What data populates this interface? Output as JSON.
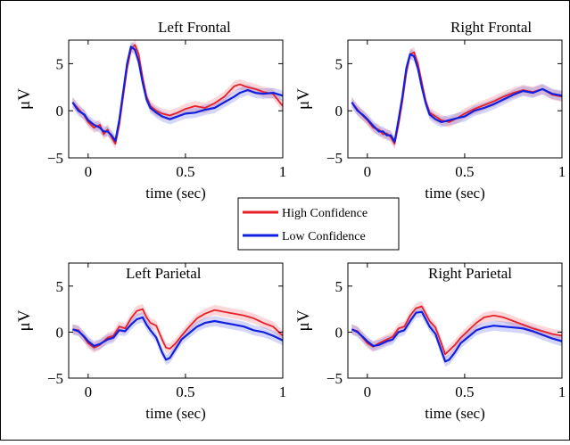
{
  "chart_data": [
    {
      "type": "line",
      "title": "Left Frontal",
      "xlabel": "time (sec)",
      "ylabel": "μV",
      "xlim": [
        -0.1,
        1.0
      ],
      "ylim": [
        -5,
        7.5
      ],
      "xticks": [
        0,
        0.5,
        1
      ],
      "xtick_labels": [
        "0",
        "0.5",
        "1"
      ],
      "yticks": [
        -5,
        0,
        5
      ],
      "ytick_labels": [
        "−5",
        "0",
        "5"
      ],
      "x": [
        -0.08,
        -0.05,
        -0.02,
        0.0,
        0.03,
        0.06,
        0.08,
        0.1,
        0.12,
        0.14,
        0.16,
        0.18,
        0.2,
        0.22,
        0.24,
        0.26,
        0.28,
        0.3,
        0.32,
        0.35,
        0.38,
        0.42,
        0.46,
        0.5,
        0.55,
        0.6,
        0.65,
        0.7,
        0.75,
        0.78,
        0.82,
        0.86,
        0.9,
        0.95,
        1.0
      ],
      "series": [
        {
          "name": "High Confidence",
          "color": "#e8202a",
          "values": [
            0.9,
            0.2,
            -0.5,
            -1.2,
            -1.8,
            -1.5,
            -2.5,
            -2.0,
            -2.8,
            -3.5,
            -1.5,
            1.5,
            4.5,
            6.5,
            7.0,
            6.0,
            3.5,
            1.5,
            0.5,
            0.0,
            -0.3,
            -0.5,
            -0.2,
            0.2,
            0.5,
            0.3,
            0.8,
            1.5,
            2.6,
            2.8,
            2.5,
            2.3,
            2.0,
            1.8,
            0.5
          ]
        },
        {
          "name": "Low Confidence",
          "color": "#1020e0",
          "values": [
            0.9,
            0.0,
            -0.4,
            -1.0,
            -1.5,
            -1.8,
            -2.2,
            -2.2,
            -2.6,
            -3.2,
            -1.0,
            2.0,
            5.0,
            6.8,
            6.5,
            5.2,
            3.0,
            1.2,
            0.3,
            -0.2,
            -0.6,
            -0.9,
            -0.6,
            -0.3,
            -0.2,
            0.1,
            0.3,
            0.9,
            1.5,
            1.9,
            2.2,
            1.9,
            1.8,
            1.9,
            1.6
          ]
        }
      ]
    },
    {
      "type": "line",
      "title": "Right Frontal",
      "xlabel": "time (sec)",
      "ylabel": "μV",
      "xlim": [
        -0.1,
        1.0
      ],
      "ylim": [
        -5,
        7.5
      ],
      "xticks": [
        0,
        0.5,
        1
      ],
      "xtick_labels": [
        "0",
        "0.5",
        "1"
      ],
      "yticks": [
        -5,
        0,
        5
      ],
      "ytick_labels": [
        "−5",
        "0",
        "5"
      ],
      "x": [
        -0.08,
        -0.05,
        -0.02,
        0.0,
        0.03,
        0.06,
        0.08,
        0.1,
        0.12,
        0.14,
        0.16,
        0.18,
        0.2,
        0.22,
        0.24,
        0.26,
        0.28,
        0.3,
        0.32,
        0.35,
        0.38,
        0.42,
        0.46,
        0.5,
        0.55,
        0.6,
        0.65,
        0.7,
        0.75,
        0.8,
        0.85,
        0.9,
        0.95,
        1.0
      ],
      "series": [
        {
          "name": "High Confidence",
          "color": "#e8202a",
          "values": [
            0.9,
            0.1,
            -0.6,
            -1.0,
            -1.8,
            -2.0,
            -2.5,
            -2.4,
            -2.8,
            -3.5,
            -1.5,
            1.0,
            4.0,
            6.0,
            6.2,
            5.0,
            3.0,
            1.0,
            -0.2,
            -0.6,
            -1.0,
            -1.2,
            -0.8,
            -0.3,
            0.2,
            0.6,
            1.0,
            1.5,
            1.9,
            2.2,
            2.0,
            2.3,
            1.7,
            1.5
          ]
        },
        {
          "name": "Low Confidence",
          "color": "#1020e0",
          "values": [
            0.9,
            0.0,
            -0.5,
            -0.9,
            -1.6,
            -2.2,
            -2.2,
            -2.6,
            -2.6,
            -3.3,
            -1.0,
            1.5,
            4.5,
            6.0,
            5.8,
            4.5,
            2.5,
            0.8,
            -0.4,
            -0.9,
            -1.2,
            -1.0,
            -0.8,
            -0.6,
            0.0,
            0.3,
            0.7,
            1.2,
            1.7,
            2.1,
            1.9,
            2.3,
            1.8,
            1.6
          ]
        }
      ]
    },
    {
      "type": "line",
      "title": "Left Parietal",
      "xlabel": "time (sec)",
      "ylabel": "μV",
      "xlim": [
        -0.1,
        1.0
      ],
      "ylim": [
        -5,
        7.5
      ],
      "xticks": [
        0,
        0.5,
        1
      ],
      "xtick_labels": [
        "0",
        "0.5",
        "1"
      ],
      "yticks": [
        -5,
        0,
        5
      ],
      "ytick_labels": [
        "−5",
        "0",
        "5"
      ],
      "x": [
        -0.08,
        -0.05,
        -0.02,
        0.0,
        0.03,
        0.06,
        0.1,
        0.13,
        0.16,
        0.19,
        0.22,
        0.25,
        0.28,
        0.3,
        0.32,
        0.35,
        0.38,
        0.4,
        0.42,
        0.45,
        0.48,
        0.52,
        0.56,
        0.6,
        0.65,
        0.7,
        0.75,
        0.8,
        0.85,
        0.9,
        0.95,
        1.0
      ],
      "series": [
        {
          "name": "High Confidence",
          "color": "#e8202a",
          "values": [
            0.3,
            0.2,
            -0.6,
            -1.2,
            -1.7,
            -1.4,
            -0.6,
            -0.4,
            0.6,
            0.4,
            1.5,
            2.3,
            2.5,
            1.6,
            1.0,
            0.7,
            -0.8,
            -1.7,
            -1.8,
            -1.2,
            -0.4,
            0.6,
            1.5,
            2.0,
            2.4,
            2.2,
            2.0,
            1.8,
            1.5,
            1.0,
            0.6,
            -0.4
          ]
        },
        {
          "name": "Low Confidence",
          "color": "#1020e0",
          "values": [
            0.3,
            0.1,
            -0.5,
            -1.0,
            -1.5,
            -1.3,
            -0.8,
            -0.6,
            0.2,
            0.1,
            0.8,
            1.4,
            1.6,
            0.8,
            0.2,
            -0.6,
            -2.2,
            -3.0,
            -2.8,
            -1.8,
            -0.8,
            -0.1,
            0.6,
            1.0,
            1.2,
            1.0,
            0.8,
            0.6,
            0.2,
            0.0,
            -0.4,
            -0.9
          ]
        }
      ]
    },
    {
      "type": "line",
      "title": "Right Parietal",
      "xlabel": "time (sec)",
      "ylabel": "μV",
      "xlim": [
        -0.1,
        1.0
      ],
      "ylim": [
        -5,
        7.5
      ],
      "xticks": [
        0,
        0.5,
        1
      ],
      "xtick_labels": [
        "0",
        "0.5",
        "1"
      ],
      "yticks": [
        -5,
        0,
        5
      ],
      "ytick_labels": [
        "−5",
        "0",
        "5"
      ],
      "x": [
        -0.08,
        -0.05,
        -0.02,
        0.0,
        0.03,
        0.06,
        0.1,
        0.13,
        0.16,
        0.19,
        0.22,
        0.25,
        0.28,
        0.3,
        0.32,
        0.35,
        0.38,
        0.4,
        0.42,
        0.45,
        0.48,
        0.52,
        0.56,
        0.6,
        0.65,
        0.7,
        0.75,
        0.8,
        0.85,
        0.9,
        0.95,
        1.0
      ],
      "series": [
        {
          "name": "High Confidence",
          "color": "#e8202a",
          "values": [
            0.3,
            0.1,
            -0.7,
            -1.2,
            -1.6,
            -1.2,
            -0.8,
            -0.5,
            0.4,
            0.6,
            1.8,
            2.6,
            2.8,
            2.0,
            1.2,
            0.5,
            -1.2,
            -2.4,
            -2.0,
            -1.4,
            -0.6,
            0.2,
            1.0,
            1.6,
            1.8,
            1.6,
            1.2,
            0.8,
            0.4,
            0.1,
            -0.2,
            -0.4
          ]
        },
        {
          "name": "Low Confidence",
          "color": "#1020e0",
          "values": [
            0.3,
            0.0,
            -0.6,
            -1.0,
            -1.5,
            -1.4,
            -1.0,
            -0.8,
            0.0,
            0.2,
            1.2,
            2.1,
            2.2,
            1.4,
            0.6,
            -0.2,
            -2.0,
            -3.2,
            -3.0,
            -2.2,
            -1.2,
            -0.5,
            0.2,
            0.5,
            0.7,
            0.6,
            0.5,
            0.4,
            0.1,
            -0.3,
            -0.7,
            -1.0
          ]
        }
      ]
    }
  ],
  "legend": {
    "entries": [
      {
        "label": "High Confidence",
        "color": "#e8202a"
      },
      {
        "label": "Low Confidence",
        "color": "#1020e0"
      }
    ],
    "placement": "center"
  }
}
